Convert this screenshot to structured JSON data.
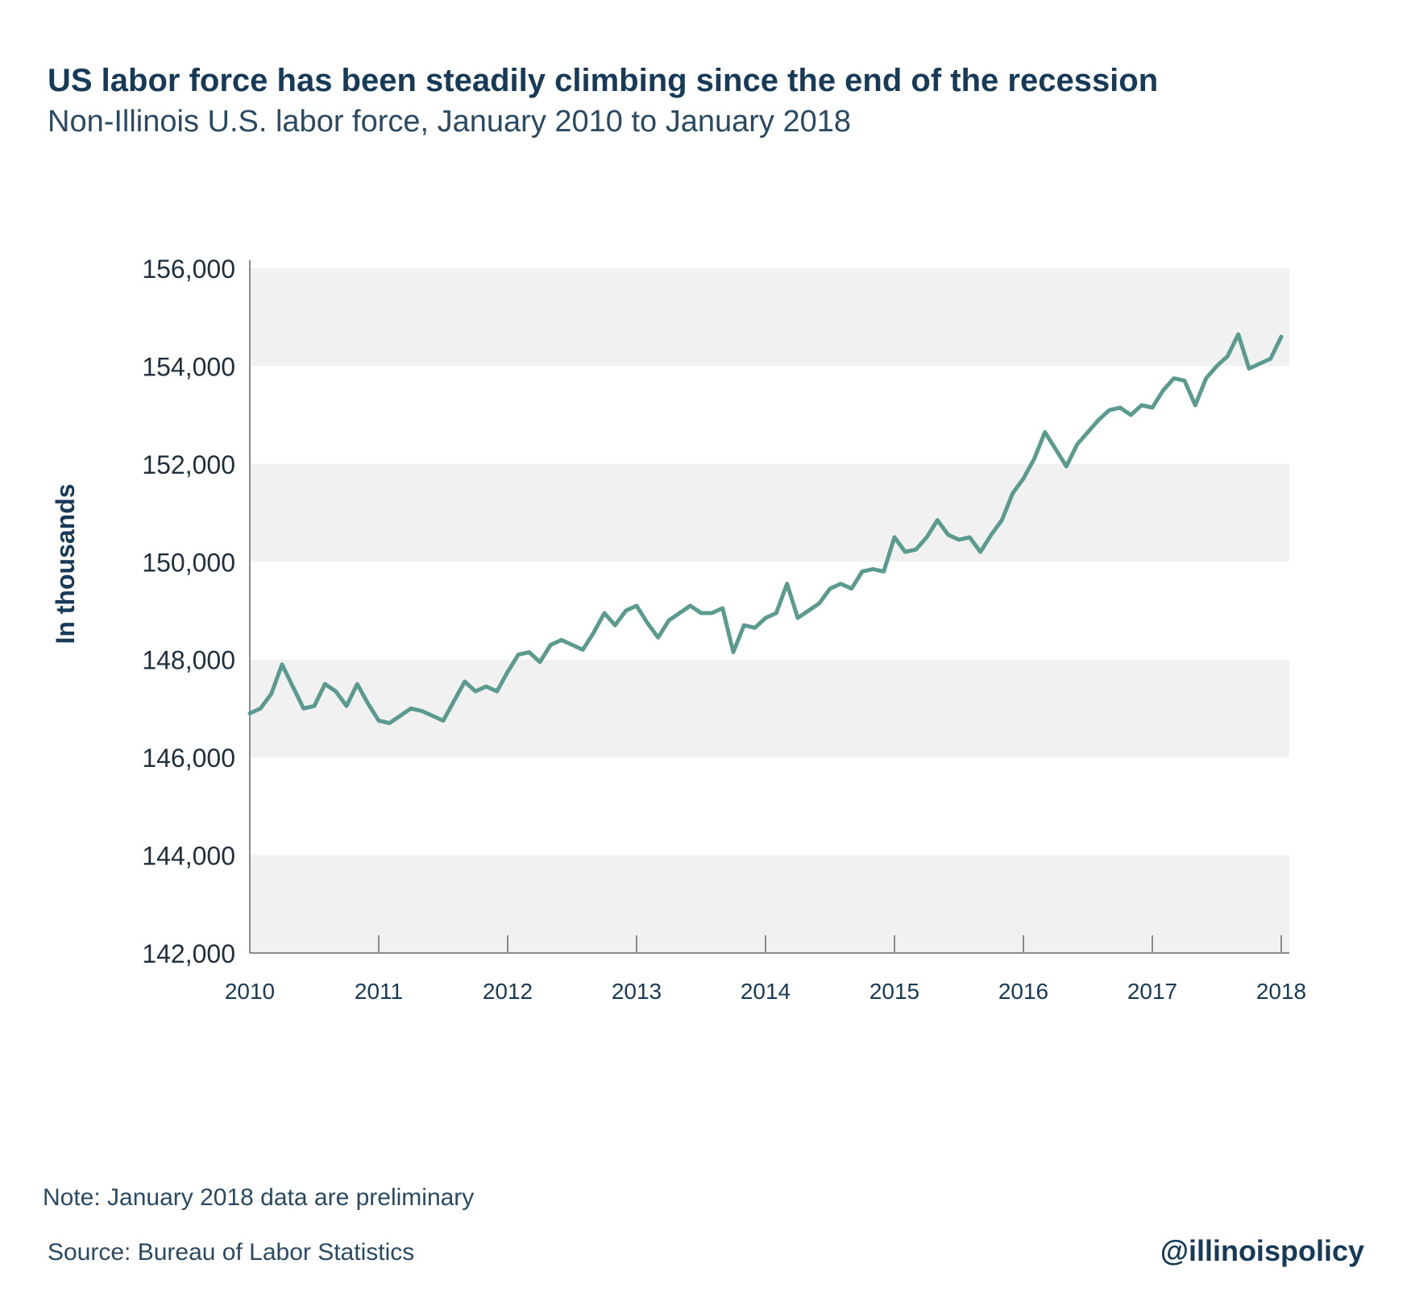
{
  "header": {
    "title": "US labor force has been steadily climbing since the end of the recession",
    "subtitle": "Non-Illinois U.S. labor force, January 2010 to January 2018"
  },
  "footer": {
    "note": "Note: January 2018 data are preliminary",
    "source": "Source: Bureau of Labor Statistics",
    "handle": "@illinoispolicy"
  },
  "colors": {
    "line": "#5a9a8f",
    "band": "#f1f1f1",
    "axis": "#8a8a8a",
    "text": "#163a57"
  },
  "chart_data": {
    "type": "line",
    "title": "US labor force has been steadily climbing since the end of the recession",
    "subtitle": "Non-Illinois U.S. labor force, January 2010 to January 2018",
    "xlabel": "",
    "ylabel": "In thousands",
    "ylim": [
      142000,
      156000
    ],
    "xlim": [
      2010,
      2018
    ],
    "y_ticks": [
      142000,
      144000,
      146000,
      148000,
      150000,
      152000,
      154000,
      156000
    ],
    "y_tick_labels": [
      "142,000",
      "144,000",
      "146,000",
      "148,000",
      "150,000",
      "152,000",
      "154,000",
      "156,000"
    ],
    "x_ticks": [
      2010,
      2011,
      2012,
      2013,
      2014,
      2015,
      2016,
      2017,
      2018
    ],
    "x_tick_labels": [
      "2010",
      "2011",
      "2012",
      "2013",
      "2014",
      "2015",
      "2016",
      "2017",
      "2018"
    ],
    "grid": "alternating horizontal bands",
    "legend": "none",
    "series": [
      {
        "x": [
          "2010-01",
          "2010-02",
          "2010-03",
          "2010-04",
          "2010-05",
          "2010-06",
          "2010-07",
          "2010-08",
          "2010-09",
          "2010-10",
          "2010-11",
          "2010-12",
          "2011-01",
          "2011-02",
          "2011-03",
          "2011-04",
          "2011-05",
          "2011-06",
          "2011-07",
          "2011-08",
          "2011-09",
          "2011-10",
          "2011-11",
          "2011-12",
          "2012-01",
          "2012-02",
          "2012-03",
          "2012-04",
          "2012-05",
          "2012-06",
          "2012-07",
          "2012-08",
          "2012-09",
          "2012-10",
          "2012-11",
          "2012-12",
          "2013-01",
          "2013-02",
          "2013-03",
          "2013-04",
          "2013-05",
          "2013-06",
          "2013-07",
          "2013-08",
          "2013-09",
          "2013-10",
          "2013-11",
          "2013-12",
          "2014-01",
          "2014-02",
          "2014-03",
          "2014-04",
          "2014-05",
          "2014-06",
          "2014-07",
          "2014-08",
          "2014-09",
          "2014-10",
          "2014-11",
          "2014-12",
          "2015-01",
          "2015-02",
          "2015-03",
          "2015-04",
          "2015-05",
          "2015-06",
          "2015-07",
          "2015-08",
          "2015-09",
          "2015-10",
          "2015-11",
          "2015-12",
          "2016-01",
          "2016-02",
          "2016-03",
          "2016-04",
          "2016-05",
          "2016-06",
          "2016-07",
          "2016-08",
          "2016-09",
          "2016-10",
          "2016-11",
          "2016-12",
          "2017-01",
          "2017-02",
          "2017-03",
          "2017-04",
          "2017-05",
          "2017-06",
          "2017-07",
          "2017-08",
          "2017-09",
          "2017-10",
          "2017-11",
          "2017-12",
          "2018-01"
        ],
        "values": [
          146900,
          147000,
          147300,
          147900,
          147450,
          147000,
          147050,
          147500,
          147350,
          147050,
          147500,
          147100,
          146750,
          146700,
          146850,
          147000,
          146950,
          146850,
          146750,
          147150,
          147550,
          147350,
          147450,
          147350,
          147750,
          148100,
          148150,
          147950,
          148300,
          148400,
          148300,
          148200,
          148550,
          148950,
          148700,
          149000,
          149100,
          148750,
          148450,
          148800,
          148950,
          149100,
          148950,
          148950,
          149050,
          148150,
          148700,
          148650,
          148850,
          148950,
          149550,
          148850,
          149000,
          149150,
          149450,
          149550,
          149450,
          149800,
          149850,
          149800,
          150500,
          150200,
          150250,
          150500,
          150850,
          150550,
          150450,
          150500,
          150200,
          150550,
          150850,
          151400,
          151700,
          152100,
          152650,
          152300,
          151950,
          152400,
          152650,
          152900,
          153100,
          153150,
          153000,
          153200,
          153150,
          153500,
          153750,
          153700,
          153200,
          153750,
          154000,
          154200,
          154650,
          153950,
          154050,
          154150,
          154600
        ]
      }
    ]
  }
}
